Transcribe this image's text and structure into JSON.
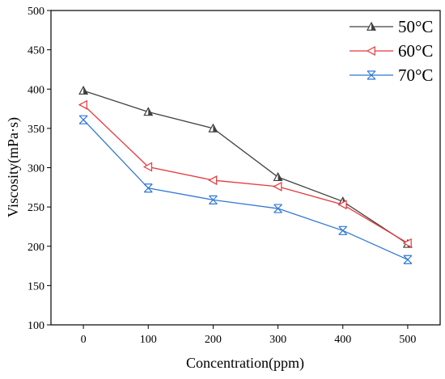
{
  "chart_data": {
    "type": "line",
    "title": "",
    "xlabel": "Concentration(ppm)",
    "ylabel": "Viscosity(mPa·s)",
    "x": [
      0,
      100,
      200,
      300,
      400,
      500
    ],
    "xticks": [
      "0",
      "100",
      "200",
      "300",
      "400",
      "500"
    ],
    "yticks": [
      "100",
      "150",
      "200",
      "250",
      "300",
      "350",
      "400",
      "450",
      "500"
    ],
    "xlim": [
      -50,
      550
    ],
    "ylim": [
      100,
      500
    ],
    "grid": false,
    "legend_position": "top-right",
    "series": [
      {
        "name": "50°C",
        "color": "#404040",
        "marker": "triangle-up",
        "values": [
          398,
          371,
          350,
          288,
          257,
          203
        ]
      },
      {
        "name": "60°C",
        "color": "#e8383a",
        "marker": "triangle-left",
        "values": [
          380,
          301,
          284,
          276,
          253,
          204
        ]
      },
      {
        "name": "70°C",
        "color": "#2f78d4",
        "marker": "x-cross",
        "values": [
          361,
          274,
          259,
          248,
          220,
          183
        ]
      }
    ]
  }
}
